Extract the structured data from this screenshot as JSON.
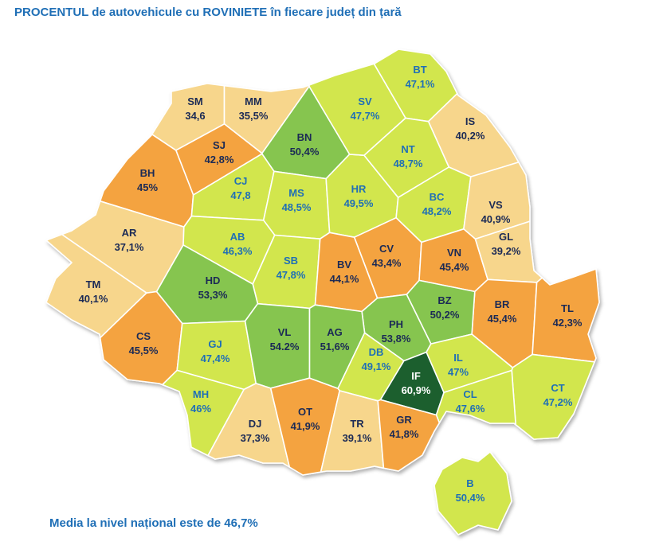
{
  "title": "PROCENTUL de autovehicule cu ROVINIETE în fiecare județ din țară",
  "footer": "Media la nivel național este de 46,7%",
  "counties": [
    {
      "code": "SM",
      "label": "34,6",
      "color": "#f7d68c"
    },
    {
      "code": "MM",
      "label": "35,5%",
      "color": "#f7d68c"
    },
    {
      "code": "BN",
      "label": "50,4%",
      "color": "#86c54f"
    },
    {
      "code": "SJ",
      "label": "42,8%",
      "color": "#f4a341"
    },
    {
      "code": "BH",
      "label": "45%",
      "color": "#f4a341"
    },
    {
      "code": "CJ",
      "label": "47,8",
      "color": "#d2e64e"
    },
    {
      "code": "MS",
      "label": "48,5%",
      "color": "#d2e64e"
    },
    {
      "code": "HR",
      "label": "49,5%",
      "color": "#d2e64e"
    },
    {
      "code": "SV",
      "label": "47,7%",
      "color": "#d2e64e"
    },
    {
      "code": "BT",
      "label": "47,1%",
      "color": "#d2e64e"
    },
    {
      "code": "IS",
      "label": "40,2%",
      "color": "#f7d68c"
    },
    {
      "code": "NT",
      "label": "48,7%",
      "color": "#d2e64e"
    },
    {
      "code": "BC",
      "label": "48,2%",
      "color": "#d2e64e"
    },
    {
      "code": "VS",
      "label": "40,9%",
      "color": "#f7d68c"
    },
    {
      "code": "AR",
      "label": "37,1%",
      "color": "#f7d68c"
    },
    {
      "code": "AB",
      "label": "46,3%",
      "color": "#d2e64e"
    },
    {
      "code": "SB",
      "label": "47,8%",
      "color": "#d2e64e"
    },
    {
      "code": "CV",
      "label": "43,4%",
      "color": "#f4a341"
    },
    {
      "code": "BV",
      "label": "44,1%",
      "color": "#f4a341"
    },
    {
      "code": "VN",
      "label": "45,4%",
      "color": "#f4a341"
    },
    {
      "code": "GL",
      "label": "39,2%",
      "color": "#f7d68c"
    },
    {
      "code": "TM",
      "label": "40,1%",
      "color": "#f7d68c"
    },
    {
      "code": "HD",
      "label": "53,3%",
      "color": "#86c54f"
    },
    {
      "code": "BR",
      "label": "45,4%",
      "color": "#f4a341"
    },
    {
      "code": "TL",
      "label": "42,3%",
      "color": "#f4a341"
    },
    {
      "code": "BZ",
      "label": "50,2%",
      "color": "#86c54f"
    },
    {
      "code": "PH",
      "label": "53,8%",
      "color": "#86c54f"
    },
    {
      "code": "CS",
      "label": "45,5%",
      "color": "#f4a341"
    },
    {
      "code": "GJ",
      "label": "47,4%",
      "color": "#d2e64e"
    },
    {
      "code": "VL",
      "label": "54.2%",
      "color": "#86c54f"
    },
    {
      "code": "AG",
      "label": "51,6%",
      "color": "#86c54f"
    },
    {
      "code": "DB",
      "label": "49,1%",
      "color": "#d2e64e"
    },
    {
      "code": "IF",
      "label": "60,9%",
      "color": "#1f5f2e"
    },
    {
      "code": "IL",
      "label": "47%",
      "color": "#d2e64e"
    },
    {
      "code": "CT",
      "label": "47,2%",
      "color": "#d2e64e"
    },
    {
      "code": "CL",
      "label": "47,6%",
      "color": "#d2e64e"
    },
    {
      "code": "MH",
      "label": "46%",
      "color": "#d2e64e"
    },
    {
      "code": "DJ",
      "label": "37,3%",
      "color": "#f7d68c"
    },
    {
      "code": "OT",
      "label": "41,9%",
      "color": "#f4a341"
    },
    {
      "code": "TR",
      "label": "39,1%",
      "color": "#f7d68c"
    },
    {
      "code": "GR",
      "label": "41,8%",
      "color": "#f4a341"
    },
    {
      "code": "B",
      "label": "50,4%",
      "color": "#d2e64e"
    }
  ]
}
